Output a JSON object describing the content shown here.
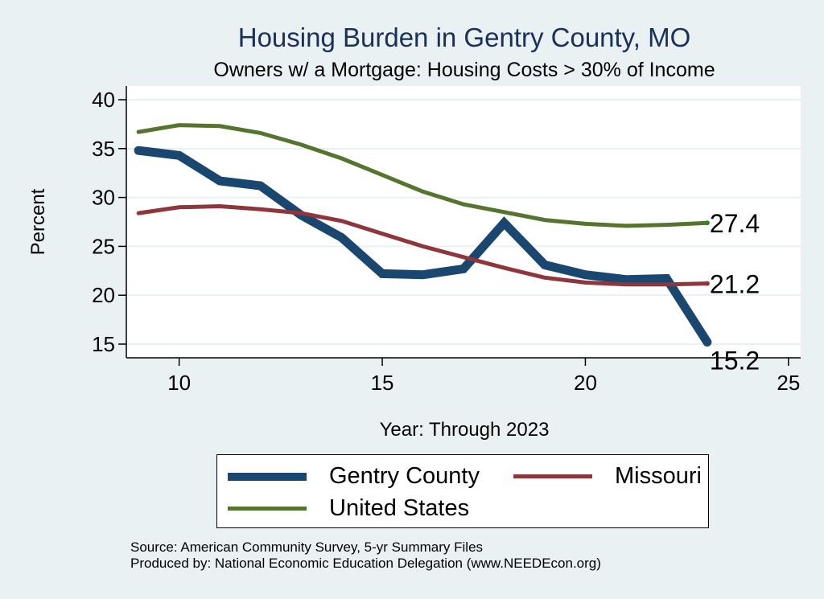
{
  "chart_data": {
    "type": "line",
    "title": "Housing Burden in Gentry County, MO",
    "subtitle": "Owners w/ a Mortgage: Housing Costs > 30% of Income",
    "xlabel": "Year: Through 2023",
    "ylabel": "Percent",
    "x": [
      9,
      10,
      11,
      12,
      13,
      14,
      15,
      16,
      17,
      18,
      19,
      20,
      21,
      22,
      23
    ],
    "xlim": [
      8.7,
      25.3
    ],
    "ylim": [
      13.6,
      41.4
    ],
    "xticks": [
      10,
      15,
      20,
      25
    ],
    "yticks": [
      15,
      20,
      25,
      30,
      35,
      40
    ],
    "grid": true,
    "legend_position": "bottom",
    "series": [
      {
        "name": "Gentry County",
        "color": "#1a476f",
        "width": "thick",
        "values": [
          34.8,
          34.3,
          31.7,
          31.2,
          28.2,
          25.9,
          22.2,
          22.1,
          22.7,
          27.4,
          23.1,
          22.1,
          21.6,
          21.7,
          15.2
        ],
        "end_label": "15.2"
      },
      {
        "name": "Missouri",
        "color": "#90353b",
        "width": "medium",
        "values": [
          28.4,
          29.0,
          29.1,
          28.8,
          28.4,
          27.6,
          26.3,
          25.0,
          23.9,
          22.8,
          21.8,
          21.3,
          21.1,
          21.1,
          21.2
        ],
        "end_label": "21.2"
      },
      {
        "name": "United States",
        "color": "#55752f",
        "width": "medium",
        "values": [
          36.7,
          37.4,
          37.3,
          36.6,
          35.4,
          34.0,
          32.3,
          30.6,
          29.3,
          28.5,
          27.7,
          27.3,
          27.1,
          27.2,
          27.4
        ],
        "end_label": "27.4"
      }
    ]
  },
  "legend": {
    "items": [
      "Gentry County",
      "Missouri",
      "United States"
    ]
  },
  "source": {
    "line1": "Source: American Community Survey, 5-yr Summary Files",
    "line2": "Produced by: National Economic Education Delegation (www.NEEDEcon.org)"
  }
}
